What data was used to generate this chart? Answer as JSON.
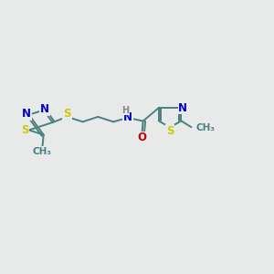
{
  "bg_color": "#e8eaea",
  "bond_color": "#4a8080",
  "bond_width": 1.4,
  "atom_colors": {
    "S": "#cccc00",
    "N": "#0000cc",
    "O": "#cc0000",
    "C": "#4a8080",
    "H": "#888888"
  },
  "font_size": 8.5,
  "small_font": 7.5
}
